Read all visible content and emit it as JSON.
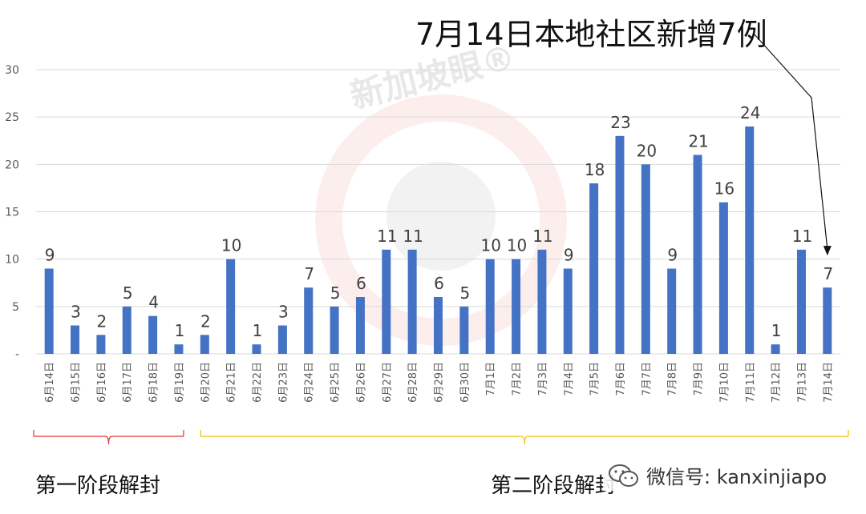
{
  "chart_data": {
    "type": "bar",
    "title": "",
    "xlabel": "",
    "ylabel": "",
    "ylim": [
      0,
      30
    ],
    "yticks": [
      "-",
      "5",
      "10",
      "15",
      "20",
      "25",
      "30"
    ],
    "grid": true,
    "bar_color": "#4472C4",
    "categories": [
      "6月14日",
      "6月15日",
      "6月16日",
      "6月17日",
      "6月18日",
      "6月19日",
      "6月20日",
      "6月21日",
      "6月22日",
      "6月23日",
      "6月24日",
      "6月25日",
      "6月26日",
      "6月27日",
      "6月28日",
      "6月29日",
      "6月30日",
      "7月1日",
      "7月2日",
      "7月3日",
      "7月4日",
      "7月5日",
      "7月6日",
      "7月7日",
      "7月8日",
      "7月9日",
      "7月10日",
      "7月11日",
      "7月12日",
      "7月13日",
      "7月14日"
    ],
    "values": [
      9,
      3,
      2,
      5,
      4,
      1,
      2,
      10,
      1,
      3,
      7,
      5,
      6,
      11,
      11,
      6,
      5,
      10,
      10,
      11,
      9,
      18,
      23,
      20,
      9,
      21,
      16,
      24,
      1,
      11,
      7
    ]
  },
  "annotation": {
    "title": "7月14日本地社区新增7例",
    "target_category": "7月14日"
  },
  "phases": [
    {
      "label": "第一阶段解封",
      "from": "6月14日",
      "to": "6月19日",
      "color": "#E03030"
    },
    {
      "label": "第二阶段解封",
      "from": "6月20日",
      "to": "7月14日",
      "color": "#F2C200"
    }
  ],
  "watermark": "新加坡眼®",
  "footer": {
    "wechat": "微信号: kanxinjiapo",
    "icon": "wechat-icon"
  }
}
